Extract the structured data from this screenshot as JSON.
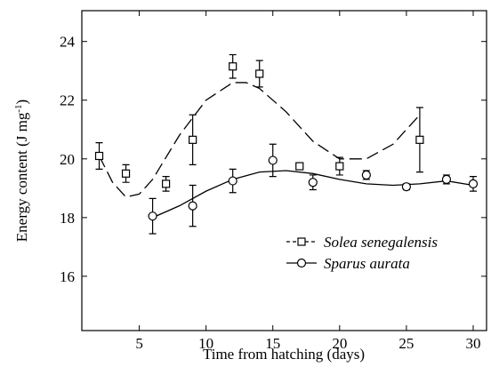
{
  "chart_data": {
    "type": "scatter",
    "xlabel": "Time from hatching (days)",
    "ylabel": [
      "Energy content (J mg",
      "-1",
      ")"
    ],
    "xlim": [
      0.7,
      31
    ],
    "ylim": [
      14.15,
      25.05
    ],
    "xticks": [
      5,
      10,
      15,
      20,
      25,
      30
    ],
    "yticks": [
      16,
      18,
      20,
      22,
      24
    ],
    "legend": "lower right",
    "series": [
      {
        "name": "Solea senegalensis",
        "marker": "square",
        "color": "#000000",
        "dash": true,
        "x": [
          2,
          4,
          7,
          9,
          12,
          14,
          17,
          20,
          26
        ],
        "values": [
          20.1,
          19.5,
          19.15,
          20.65,
          23.15,
          22.9,
          19.75,
          19.75,
          20.65
        ],
        "errors": [
          0.45,
          0.3,
          0.25,
          0.85,
          0.4,
          0.45,
          0.1,
          0.3,
          1.1
        ],
        "fit": {
          "x": [
            2,
            3,
            4,
            5,
            6,
            8,
            10,
            12,
            13,
            14,
            16,
            18,
            20,
            22,
            24,
            26
          ],
          "values": [
            20.1,
            19.2,
            18.7,
            18.8,
            19.3,
            20.8,
            22.0,
            22.6,
            22.6,
            22.4,
            21.6,
            20.6,
            20.0,
            20.0,
            20.5,
            21.5
          ]
        }
      },
      {
        "name": "Sparus aurata",
        "marker": "circle",
        "color": "#000000",
        "dash": false,
        "x": [
          6,
          9,
          12,
          15,
          18,
          22,
          25,
          28,
          30
        ],
        "values": [
          18.05,
          18.4,
          19.25,
          19.95,
          19.2,
          19.45,
          19.05,
          19.3,
          19.15
        ],
        "errors": [
          0.6,
          0.7,
          0.4,
          0.55,
          0.25,
          0.15,
          0.1,
          0.15,
          0.25
        ],
        "fit": {
          "x": [
            6,
            8,
            10,
            12,
            14,
            16,
            18,
            20,
            22,
            24,
            26,
            28,
            30
          ],
          "values": [
            18.0,
            18.4,
            18.9,
            19.3,
            19.55,
            19.6,
            19.5,
            19.3,
            19.15,
            19.1,
            19.15,
            19.25,
            19.1
          ]
        }
      }
    ]
  }
}
